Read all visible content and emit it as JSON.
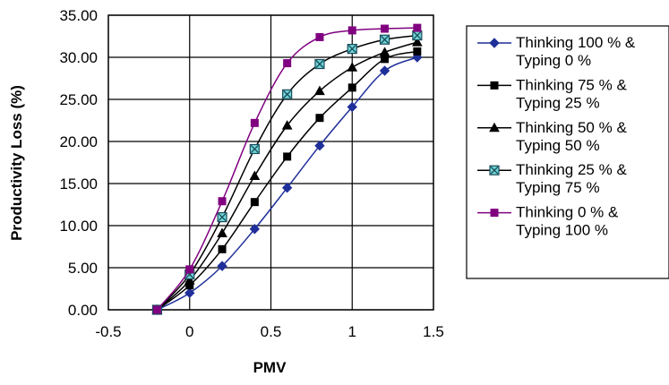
{
  "chart_data": {
    "type": "line",
    "title": "",
    "xlabel": "PMV",
    "ylabel": "Productivity Loss (%)",
    "xlim": [
      -0.5,
      1.5
    ],
    "ylim": [
      0,
      35
    ],
    "xticks": [
      "-0.5",
      "0",
      "0.5",
      "1",
      "1.5"
    ],
    "yticks": [
      "0.00",
      "5.00",
      "10.00",
      "15.00",
      "20.00",
      "25.00",
      "30.00",
      "35.00"
    ],
    "grid": true,
    "legend_position": "right",
    "x": [
      -0.2,
      0,
      0.2,
      0.4,
      0.6,
      0.8,
      1.0,
      1.2,
      1.4
    ],
    "series": [
      {
        "name_line1": "Thinking 100 % &",
        "name_line2": "Typing 0 %",
        "marker": "diamond",
        "color": "#1f2f99",
        "values": [
          0,
          2.0,
          5.2,
          9.6,
          14.5,
          19.5,
          24.1,
          28.4,
          30.0
        ]
      },
      {
        "name_line1": "Thinking 75 % &",
        "name_line2": "Typing 25 %",
        "marker": "square",
        "color": "#000000",
        "values": [
          0,
          2.9,
          7.2,
          12.8,
          18.2,
          22.8,
          26.4,
          29.8,
          30.7
        ]
      },
      {
        "name_line1": "Thinking 50 % &",
        "name_line2": "Typing 50 %",
        "marker": "triangle",
        "color": "#000000",
        "values": [
          0,
          3.5,
          9.1,
          15.9,
          21.9,
          26.0,
          28.8,
          30.6,
          31.8
        ]
      },
      {
        "name_line1": "Thinking 25 % &",
        "name_line2": "Typing 75 %",
        "marker": "xsquare",
        "color": "#000000",
        "values": [
          0,
          4.2,
          11.0,
          19.1,
          25.6,
          29.2,
          31.0,
          32.1,
          32.6
        ]
      },
      {
        "name_line1": "Thinking 0 % &",
        "name_line2": "Typing 100 %",
        "marker": "square",
        "color": "#800080",
        "values": [
          0,
          4.8,
          12.9,
          22.2,
          29.3,
          32.4,
          33.2,
          33.4,
          33.5
        ]
      }
    ]
  }
}
